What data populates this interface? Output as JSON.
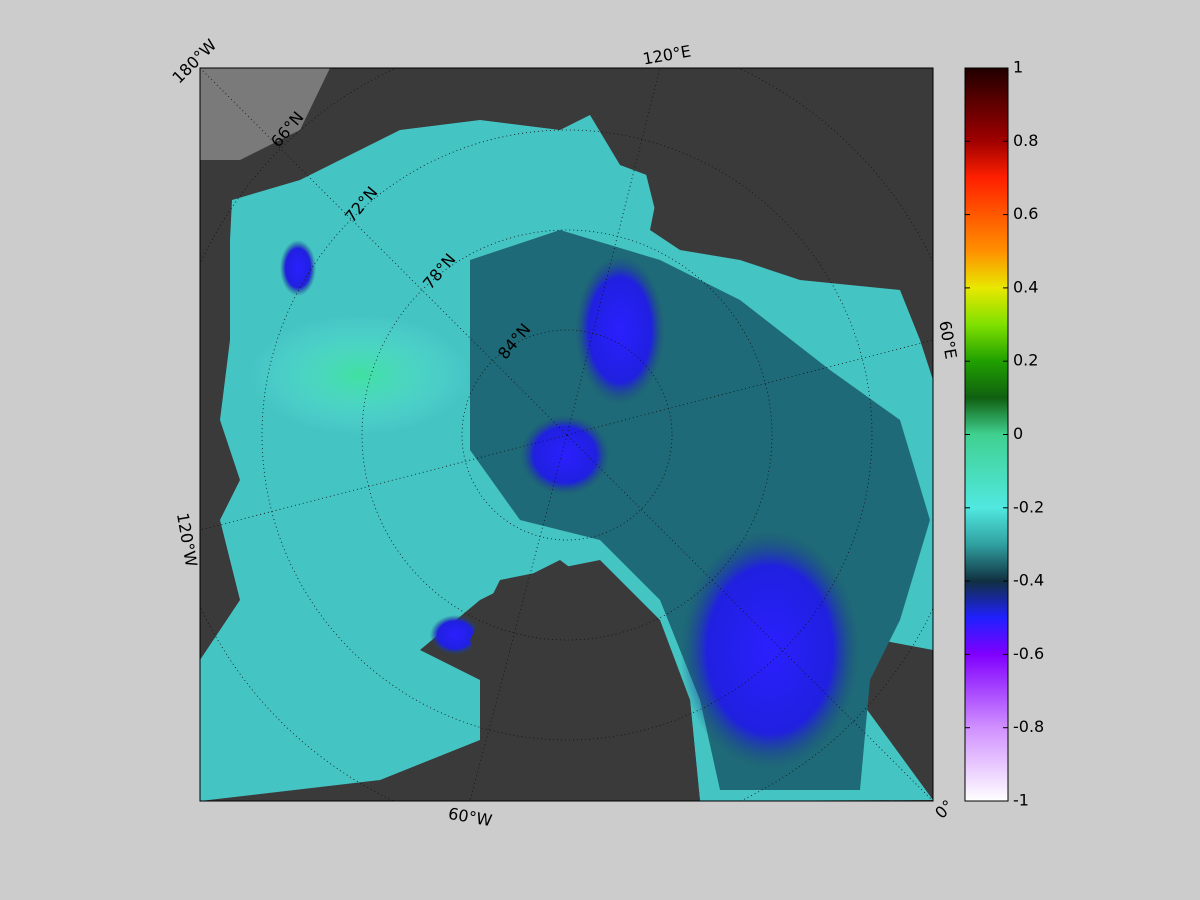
{
  "map": {
    "lon_labels": [
      "180°W",
      "120°E",
      "60°E",
      "0°",
      "60°W",
      "120°W"
    ],
    "lat_labels": [
      "66°N",
      "72°N",
      "78°N",
      "84°N"
    ]
  },
  "colorbar": {
    "lim": [
      -1,
      1
    ],
    "ticks": [
      1,
      0.8,
      0.6,
      0.4,
      0.2,
      0,
      -0.2,
      -0.4,
      -0.6,
      -0.8,
      -1
    ]
  }
}
